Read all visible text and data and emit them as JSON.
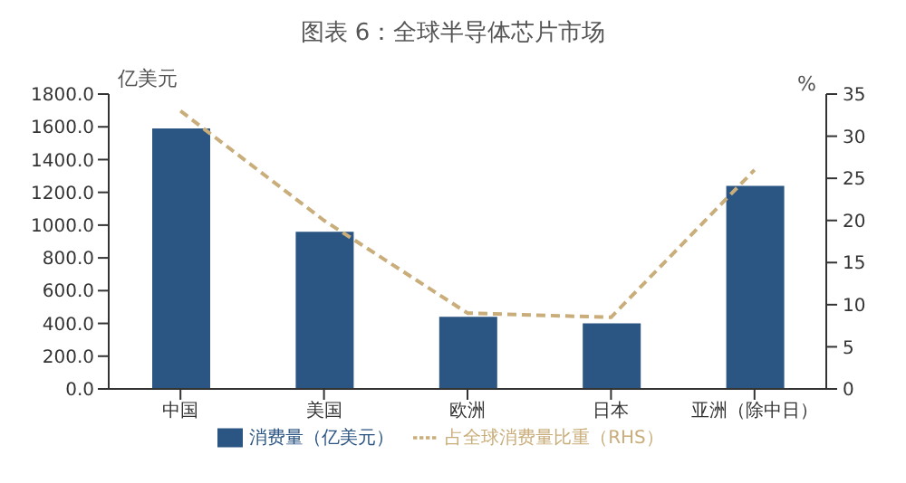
{
  "chart_data": {
    "type": "bar",
    "title": "图表 6：全球半导体芯片市场",
    "ylabel": "亿美元",
    "y2label": "%",
    "categories": [
      "中国",
      "美国",
      "欧洲",
      "日本",
      "亚洲（除中日）"
    ],
    "series": [
      {
        "name": "消费量（亿美元）",
        "color": "#2b5582",
        "values": [
          1590,
          960,
          440,
          400,
          1240
        ]
      },
      {
        "name": "占全球消费量比重（RHS）",
        "type": "line",
        "axis": "y2",
        "color": "#c9ad7a",
        "line_style": "dashed",
        "marker": "none",
        "values": [
          33,
          20,
          9,
          8.5,
          26
        ]
      }
    ],
    "ylim": [
      0,
      1800
    ],
    "yticks": [
      {
        "value": 0,
        "label": "0.0"
      },
      {
        "value": 200,
        "label": "200.0"
      },
      {
        "value": 400,
        "label": "400.0"
      },
      {
        "value": 600,
        "label": "600.0"
      },
      {
        "value": 800,
        "label": "800.0"
      },
      {
        "value": 1000,
        "label": "1000.0"
      },
      {
        "value": 1200,
        "label": "1200.0"
      },
      {
        "value": 1400,
        "label": "1400.0"
      },
      {
        "value": 1600,
        "label": "1600.0"
      },
      {
        "value": 1800,
        "label": "1800.0"
      }
    ],
    "y2lim": [
      0,
      35
    ],
    "y2ticks": [
      0,
      5,
      10,
      15,
      20,
      25,
      30,
      35
    ],
    "grid": false,
    "legend": "bottom"
  }
}
